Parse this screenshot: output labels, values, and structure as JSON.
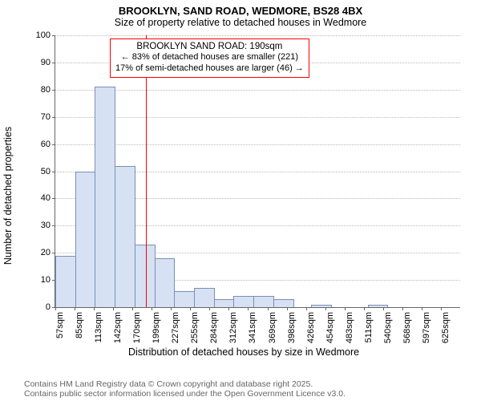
{
  "title": "BROOKLYN, SAND ROAD, WEDMORE, BS28 4BX",
  "subtitle": "Size of property relative to detached houses in Wedmore",
  "ylabel": "Number of detached properties",
  "xlabel": "Distribution of detached houses by size in Wedmore",
  "footer_line1": "Contains HM Land Registry data © Crown copyright and database right 2025.",
  "footer_line2": "Contains public sector information licensed under the Open Government Licence v3.0.",
  "chart": {
    "type": "histogram",
    "ylim": [
      0,
      100
    ],
    "ytick_step": 10,
    "bar_fill": "#d6e1f3",
    "bar_border": "#7a8fb8",
    "grid_color": "#bbbbbb",
    "marker_color": "#ff0000",
    "marker_value_sqm": 190,
    "annotation_border": "#ff0000",
    "categories": [
      "57sqm",
      "85sqm",
      "113sqm",
      "142sqm",
      "170sqm",
      "199sqm",
      "227sqm",
      "255sqm",
      "284sqm",
      "312sqm",
      "341sqm",
      "369sqm",
      "398sqm",
      "426sqm",
      "454sqm",
      "483sqm",
      "511sqm",
      "540sqm",
      "568sqm",
      "597sqm",
      "625sqm"
    ],
    "values": [
      19,
      50,
      81,
      52,
      23,
      18,
      6,
      7,
      3,
      4,
      4,
      3,
      0,
      1,
      0,
      0,
      1,
      0,
      0,
      0,
      0
    ],
    "annotation": {
      "title": "BROOKLYN SAND ROAD: 190sqm",
      "line1": "← 83% of detached houses are smaller (221)",
      "line2": "17% of semi-detached houses are larger (46) →"
    }
  }
}
